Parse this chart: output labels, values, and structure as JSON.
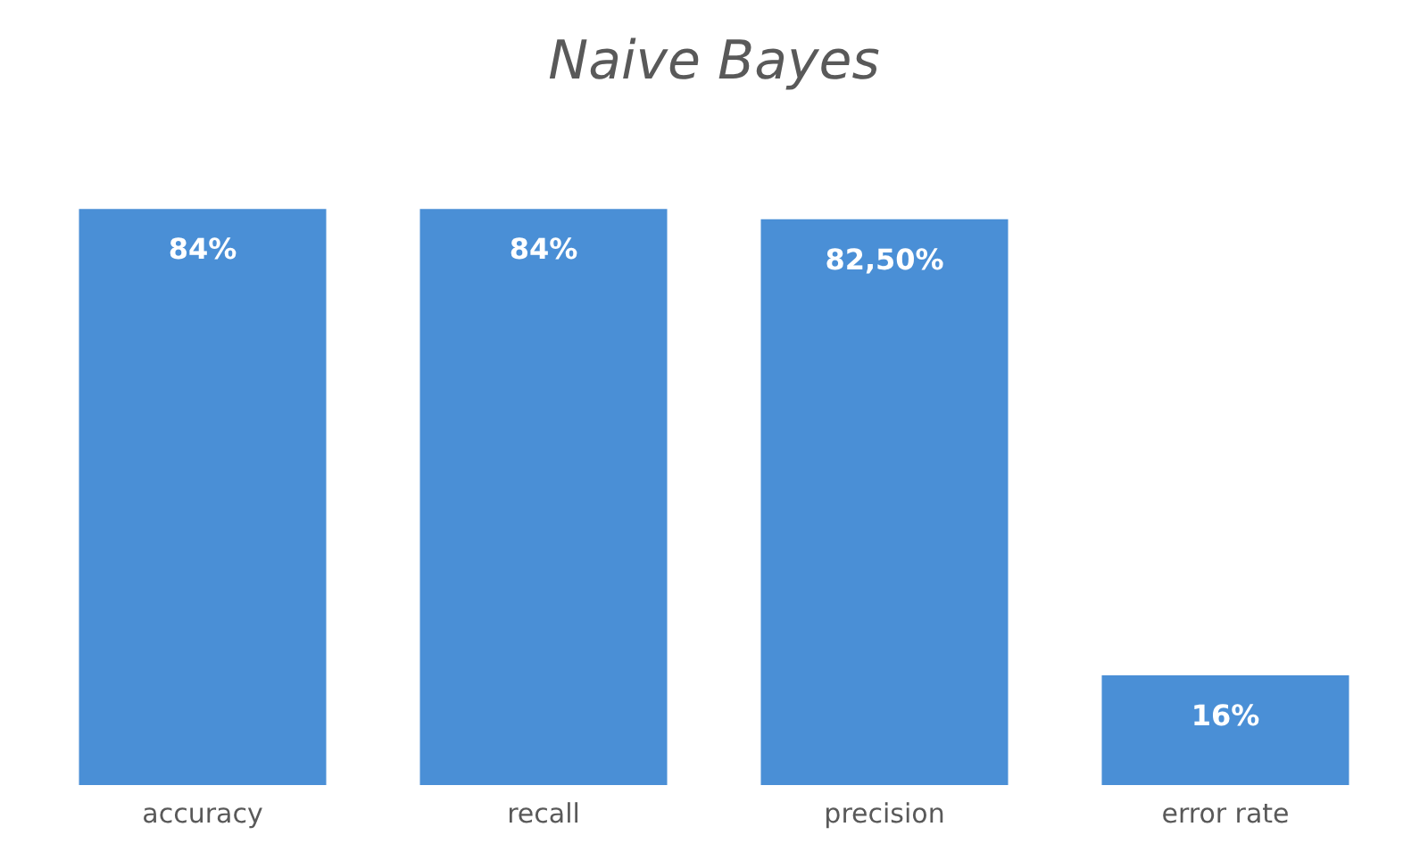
{
  "chart_data": {
    "type": "bar",
    "title": "Naive Bayes",
    "categories": [
      "accuracy",
      "recall",
      "precision",
      "error rate"
    ],
    "values": [
      84,
      84,
      82.5,
      16
    ],
    "value_labels": [
      "84%",
      "84%",
      "82,50%",
      "16%"
    ],
    "color": "#4a8fd6",
    "grid": false,
    "legend": false,
    "tick_labels": "x"
  }
}
